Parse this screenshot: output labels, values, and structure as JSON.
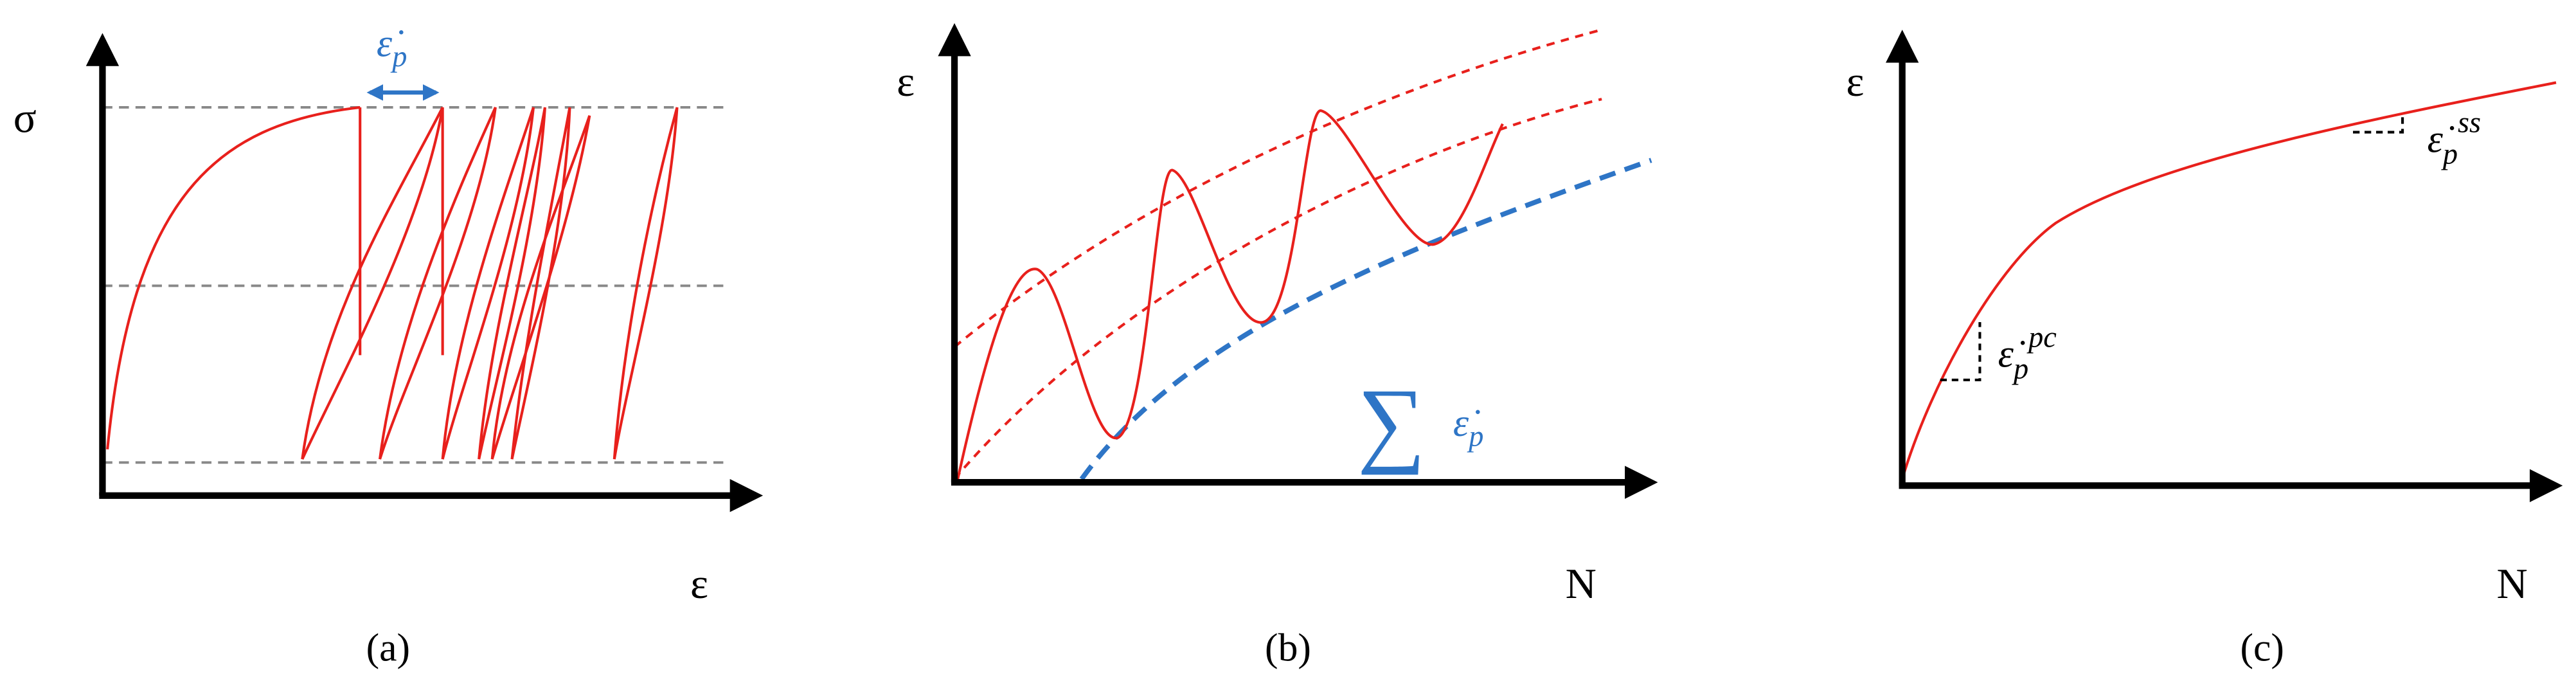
{
  "panels": [
    {
      "caption": "(a)",
      "y_axis_label": "σ",
      "x_axis_label": "ε",
      "annotation": {
        "symbol": "ε̇",
        "subscript": "p"
      }
    },
    {
      "caption": "(b)",
      "y_axis_label": "ε",
      "x_axis_label": "N",
      "annotation": {
        "operator": "∑",
        "symbol": "ε̇",
        "subscript": "p"
      }
    },
    {
      "caption": "(c)",
      "y_axis_label": "ε",
      "x_axis_label": "N",
      "annotations": [
        {
          "symbol": "ε̇",
          "subscript": "p",
          "superscript": "ss"
        },
        {
          "symbol": "ε̇",
          "subscript": "p",
          "superscript": "pc"
        }
      ]
    }
  ]
}
